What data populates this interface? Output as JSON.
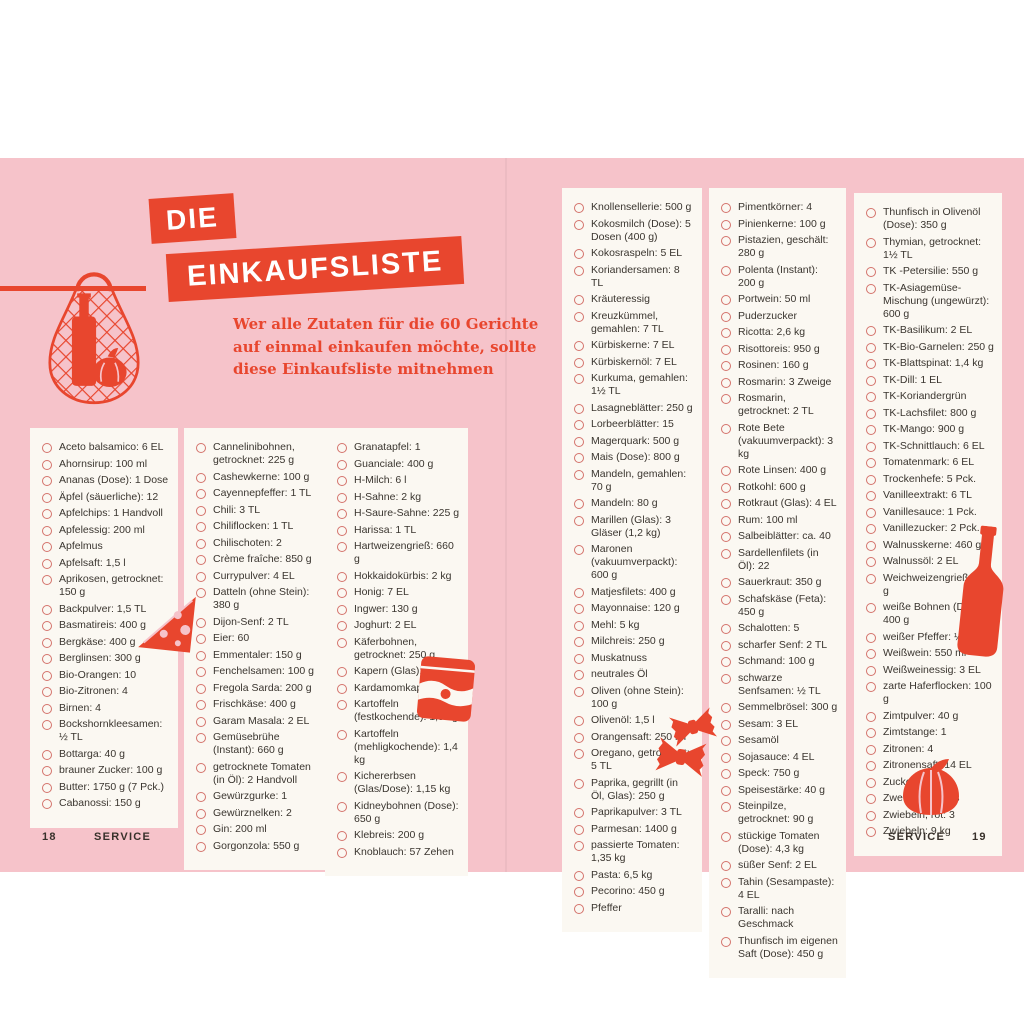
{
  "header": {
    "title_word1": "DIE",
    "title_word2": "EINKAUFSLISTE",
    "subtitle": "Wer alle Zutaten für die 60 Gerichte\nauf einmal einkaufen möchte, sollte\ndiese Einkaufsliste mitnehmen"
  },
  "footer": {
    "left_page_number": "18",
    "left_label": "SERVICE",
    "right_label": "SERVICE",
    "right_page_number": "19"
  },
  "colors": {
    "background_pink": "#f6c3ca",
    "accent_red": "#e8462e",
    "panel_white": "#fbf8f2",
    "text_dark": "#3a352f",
    "checkbox_ring": "#d4736c"
  },
  "decorative_icons": [
    "net-bag-icon",
    "cheese-icon",
    "tomato-can-icon",
    "farfalle-icon",
    "wine-bottle-icon",
    "garlic-icon"
  ],
  "columns": [
    {
      "id": "column-1",
      "items": [
        "Aceto balsamico: 6 EL",
        "Ahornsirup: 100 ml",
        "Ananas (Dose): 1 Dose",
        "Äpfel (säuerliche): 12",
        "Apfelchips: 1 Handvoll",
        "Apfelessig: 200 ml",
        "Apfelmus",
        "Apfelsaft: 1,5 l",
        "Aprikosen, getrocknet: 150 g",
        "Backpulver: 1,5 TL",
        "Basmatireis: 400 g",
        "Bergkäse: 400 g",
        "Berglinsen: 300 g",
        "Bio-Orangen: 10",
        "Bio-Zitronen: 4",
        "Birnen: 4",
        "Bockshornkleesamen: ½ TL",
        "Bottarga: 40 g",
        "brauner Zucker: 100 g",
        "Butter: 1750 g (7 Pck.)",
        "Cabanossi: 150 g"
      ]
    },
    {
      "id": "column-2",
      "items": [
        "Cannelinibohnen, getrocknet: 225 g",
        "Cashewkerne: 100 g",
        "Cayennepfeffer: 1 TL",
        "Chili: 3 TL",
        "Chiliflocken: 1 TL",
        "Chilischoten: 2",
        "Crème fraîche: 850 g",
        "Currypulver: 4 EL",
        "Datteln (ohne Stein): 380 g",
        "Dijon-Senf: 2 TL",
        "Eier: 60",
        "Emmentaler: 150 g",
        "Fenchelsamen: 100 g",
        "Fregola Sarda: 200 g",
        "Frischkäse: 400 g",
        "Garam Masala: 2 EL",
        "Gemüsebrühe (Instant): 660 g",
        "getrocknete Tomaten (in Öl): 2 Handvoll",
        "Gewürzgurke: 1",
        "Gewürznelken: 2",
        "Gin: 200 ml",
        "Gorgonzola: 550 g"
      ]
    },
    {
      "id": "column-3",
      "items": [
        "Granatapfel: 1",
        "Guanciale: 400 g",
        "H-Milch: 6 l",
        "H-Sahne: 2 kg",
        "H-Saure-Sahne: 225 g",
        "Harissa: 1 TL",
        "Hartweizengrieß: 660 g",
        "Hokkaidokürbis: 2 kg",
        "Honig: 7 EL",
        "Ingwer: 130 g",
        "Joghurt: 2 EL",
        "Käferbohnen, getrocknet: 250 g",
        "Kapern (Glas): 60 g",
        "Kardamomkapseln: 8",
        "Kartoffeln (festkochende): 1,9 kg",
        "Kartoffeln (mehligkochende): 1,4 kg",
        "Kichererbsen (Glas/Dose): 1,15 kg",
        "Kidneybohnen (Dose): 650 g",
        "Klebreis: 200 g",
        "Knoblauch: 57 Zehen"
      ]
    },
    {
      "id": "column-4",
      "items": [
        "Knollensellerie: 500 g",
        "Kokosmilch (Dose): 5 Dosen (400 g)",
        "Kokosraspeln: 5 EL",
        "Koriandersamen: 8 TL",
        "Kräuteressig",
        "Kreuzkümmel, gemahlen: 7 TL",
        "Kürbiskerne: 7 EL",
        "Kürbiskernöl: 7 EL",
        "Kurkuma, gemahlen: 1½ TL",
        "Lasagneblätter: 250 g",
        "Lorbeerblätter: 15",
        "Magerquark: 500 g",
        "Mais (Dose): 800 g",
        "Mandeln, gemahlen: 70 g",
        "Mandeln: 80 g",
        "Marillen (Glas): 3 Gläser (1,2 kg)",
        "Maronen (vakuumverpackt): 600 g",
        "Matjesfilets: 400 g",
        "Mayonnaise: 120 g",
        "Mehl: 5 kg",
        "Milchreis: 250 g",
        "Muskatnuss",
        "neutrales Öl",
        "Oliven (ohne Stein): 100 g",
        "Olivenöl: 1,5 l",
        "Orangensaft: 250 ml",
        "Oregano, getrocknet: 5 TL",
        "Paprika, gegrillt (in Öl, Glas): 250 g",
        "Paprikapulver: 3 TL",
        "Parmesan: 1400 g",
        "passierte Tomaten: 1,35 kg",
        "Pasta: 6,5 kg",
        "Pecorino: 450 g",
        "Pfeffer"
      ]
    },
    {
      "id": "column-5",
      "items": [
        "Pimentkörner: 4",
        "Pinienkerne: 100 g",
        "Pistazien, geschält: 280 g",
        "Polenta (Instant): 200 g",
        "Portwein: 50 ml",
        "Puderzucker",
        "Ricotta: 2,6 kg",
        "Risottoreis: 950 g",
        "Rosinen: 160 g",
        "Rosmarin: 3 Zweige",
        "Rosmarin, getrocknet: 2 TL",
        "Rote Bete (vakuumverpackt): 3 kg",
        "Rote Linsen: 400 g",
        "Rotkohl: 600 g",
        "Rotkraut (Glas): 4 EL",
        "Rum: 100 ml",
        "Salbeiblätter: ca. 40",
        "Sardellenfilets (in Öl): 22",
        "Sauerkraut: 350 g",
        "Schafskäse (Feta): 450 g",
        "Schalotten: 5",
        "scharfer Senf: 2 TL",
        "Schmand: 100 g",
        "schwarze Senfsamen: ½ TL",
        "Semmelbrösel: 300 g",
        "Sesam: 3 EL",
        "Sesamöl",
        "Sojasauce: 4 EL",
        "Speck: 750 g",
        "Speisestärke: 40 g",
        "Steinpilze, getrocknet: 90 g",
        "stückige Tomaten (Dose): 4,3 kg",
        "süßer Senf: 2 EL",
        "Tahin (Sesampaste): 4 EL",
        "Taralli: nach Geschmack",
        "Thunfisch im eigenen Saft (Dose): 450 g"
      ]
    },
    {
      "id": "column-6",
      "items": [
        "Thunfisch in Olivenöl (Dose): 350 g",
        "Thymian, getrocknet: 1½ TL",
        "TK -Petersilie: 550 g",
        "TK-Asiagemüse-Mischung (ungewürzt): 600 g",
        "TK-Basilikum: 2 EL",
        "TK-Bio-Garnelen: 250 g",
        "TK-Blattspinat: 1,4 kg",
        "TK-Dill: 1 EL",
        "TK-Koriandergrün",
        "TK-Lachsfilet: 800 g",
        "TK-Mango: 900 g",
        "TK-Schnittlauch: 6 EL",
        "Tomatenmark: 6 EL",
        "Trockenhefe: 5 Pck.",
        "Vanilleextrakt: 6 TL",
        "Vanillesauce: 1 Pck.",
        "Vanillezucker: 2 Pck.",
        "Walnusskerne: 460 g",
        "Walnussöl: 2 EL",
        "Weichweizengrieß: 90 g",
        "weiße Bohnen (Dose): 400 g",
        "weißer Pfeffer: ½ TL",
        "Weißwein: 550 ml",
        "Weißweinessig: 3 EL",
        "zarte Haferflocken: 100 g",
        "Zimtpulver: 40 g",
        "Zimtstange: 1",
        "Zitronen: 4",
        "Zitronensaft: 14 EL",
        "Zucker: 400 g",
        "Zwetschgenmus",
        "Zwiebeln, rot: 3",
        "Zwiebeln: 9 kg"
      ]
    }
  ]
}
